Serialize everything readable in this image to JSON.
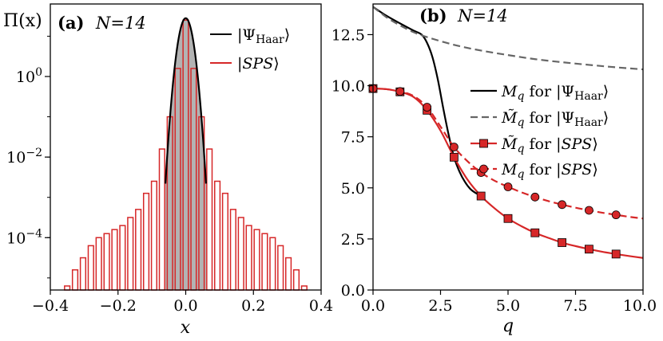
{
  "chart_data": [
    {
      "panel": "(a)",
      "annotation": "N=14",
      "type": "histogram",
      "xlabel": "x",
      "ylabel": "Π(x)",
      "xlim": [
        -0.4,
        0.4
      ],
      "ylog": true,
      "ylim_log10": [
        -5.3,
        1.8
      ],
      "x_ticks": [
        "−0.4",
        "−0.2",
        "0.0",
        "0.2",
        "0.4"
      ],
      "y_ticks": [
        {
          "label": "10^0",
          "exp": 0
        },
        {
          "label": "10^−2",
          "exp": -2
        },
        {
          "label": "10^−4",
          "exp": -4
        }
      ],
      "legend": [
        "|Ψ_Haar⟩",
        "|SPS⟩"
      ],
      "legend_position": "top-right",
      "series": [
        {
          "name": "|Ψ_Haar⟩",
          "kind": "line+fill",
          "color": "#000000",
          "fill": "#b3b3b3",
          "sigma": 0.0138,
          "peak": 28
        },
        {
          "name": "|SPS⟩",
          "kind": "bars",
          "color": "#d62728",
          "bin_width": 0.0233,
          "bin_centers": [
            -0.3501,
            -0.3268,
            -0.3034,
            -0.2801,
            -0.2568,
            -0.2334,
            -0.2101,
            -0.1867,
            -0.1634,
            -0.1401,
            -0.1167,
            -0.0934,
            -0.07,
            -0.0467,
            -0.0233,
            0.0,
            0.0233,
            0.0467,
            0.07,
            0.0934,
            0.1167,
            0.1401,
            0.1634,
            0.1867,
            0.2101,
            0.2334,
            0.2568,
            0.2801,
            0.3034,
            0.3268,
            0.3501
          ],
          "log10_values": [
            -5.2,
            -4.8,
            -4.5,
            -4.2,
            -4.0,
            -3.9,
            -3.8,
            -3.7,
            -3.5,
            -3.3,
            -2.9,
            -2.6,
            -1.8,
            -1.0,
            0.2,
            1.4,
            0.2,
            -1.0,
            -1.8,
            -2.6,
            -2.9,
            -3.3,
            -3.5,
            -3.7,
            -3.8,
            -3.9,
            -4.0,
            -4.2,
            -4.5,
            -4.8,
            -5.2
          ]
        }
      ]
    },
    {
      "panel": "(b)",
      "annotation": "N=14",
      "type": "line",
      "xlabel": "q",
      "xlim": [
        0,
        10
      ],
      "ylim": [
        0,
        14
      ],
      "x_ticks": [
        0,
        2.5,
        5,
        7.5,
        10
      ],
      "x_tick_labels": [
        "0.0",
        "2.5",
        "5.0",
        "7.5",
        "10.0"
      ],
      "y_ticks": [
        0,
        2.5,
        5,
        7.5,
        10,
        12.5
      ],
      "y_tick_labels": [
        "0.0",
        "2.5",
        "5.0",
        "7.5",
        "10.0",
        "12.5"
      ],
      "legend_position": "center-right",
      "series": [
        {
          "name": "M_q for |Ψ_Haar⟩",
          "legend": {
            "sym": "M",
            "tilde": false,
            "state": "Haar"
          },
          "style": "solid",
          "color": "#000000",
          "marker": "none",
          "x": [
            0,
            0.5,
            1,
            1.5,
            1.8,
            2.0,
            2.2,
            2.4,
            2.6,
            2.8,
            3.0,
            3.2,
            3.4,
            3.6,
            3.8,
            4.0
          ],
          "y": [
            13.86,
            13.42,
            13.05,
            12.7,
            12.5,
            12.1,
            11.4,
            10.3,
            8.9,
            7.6,
            6.5,
            5.8,
            5.3,
            4.95,
            4.75,
            4.62
          ]
        },
        {
          "name": "M̃_q for |Ψ_Haar⟩",
          "legend": {
            "sym": "M",
            "tilde": true,
            "state": "Haar"
          },
          "style": "dashed",
          "color": "#666666",
          "marker": "none",
          "x": [
            0,
            0.5,
            1,
            1.5,
            2,
            3,
            4,
            5,
            6,
            7,
            8,
            9,
            10
          ],
          "y": [
            13.86,
            13.35,
            12.95,
            12.62,
            12.38,
            12.0,
            11.72,
            11.5,
            11.3,
            11.15,
            11.02,
            10.9,
            10.8
          ]
        },
        {
          "name": "M̃_q for |SPS⟩",
          "legend": {
            "sym": "M",
            "tilde": true,
            "state": "SPS"
          },
          "style": "solid",
          "color": "#d62728",
          "marker": "square",
          "x": [
            0,
            0.5,
            1,
            1.5,
            2,
            2.5,
            3,
            3.5,
            4,
            4.5,
            5,
            5.5,
            6,
            6.5,
            7,
            7.5,
            8,
            8.5,
            9,
            9.5,
            10
          ],
          "y": [
            9.86,
            9.83,
            9.7,
            9.45,
            8.8,
            7.8,
            6.5,
            5.4,
            4.6,
            4.0,
            3.5,
            3.12,
            2.8,
            2.55,
            2.32,
            2.15,
            2.0,
            1.87,
            1.76,
            1.66,
            1.57
          ],
          "markers_x": [
            0,
            1,
            2,
            3,
            4,
            5,
            6,
            7,
            8,
            9
          ],
          "markers_y": [
            9.86,
            9.7,
            8.8,
            6.5,
            4.6,
            3.5,
            2.8,
            2.32,
            2.0,
            1.76
          ]
        },
        {
          "name": "M_q for |SPS⟩",
          "legend": {
            "sym": "M",
            "tilde": false,
            "state": "SPS"
          },
          "style": "dashed",
          "color": "#d62728",
          "marker": "circle",
          "x": [
            0,
            0.5,
            1,
            1.5,
            2,
            2.5,
            3,
            3.5,
            4,
            4.5,
            5,
            5.5,
            6,
            6.5,
            7,
            7.5,
            8,
            8.5,
            9,
            9.5,
            10
          ],
          "y": [
            9.86,
            9.83,
            9.72,
            9.5,
            8.95,
            8.0,
            7.0,
            6.3,
            5.75,
            5.35,
            5.05,
            4.78,
            4.55,
            4.35,
            4.18,
            4.03,
            3.9,
            3.78,
            3.68,
            3.58,
            3.5
          ],
          "markers_x": [
            0,
            1,
            2,
            3,
            4,
            5,
            6,
            7,
            8,
            9
          ],
          "markers_y": [
            9.86,
            9.72,
            8.95,
            7.0,
            5.75,
            5.05,
            4.55,
            4.18,
            3.9,
            3.68
          ]
        }
      ]
    }
  ]
}
